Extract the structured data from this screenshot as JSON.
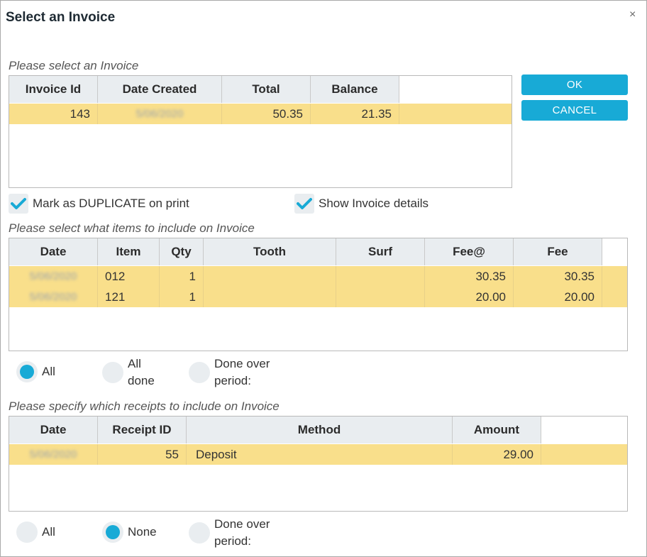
{
  "dialog": {
    "title": "Select an Invoice",
    "close": "×"
  },
  "invoice_section": {
    "label": "Please select an Invoice",
    "headers": [
      "Invoice Id",
      "Date Created",
      "Total",
      "Balance"
    ],
    "rows": [
      {
        "invoice_id": "143",
        "date_created": "5/06/2020",
        "total": "50.35",
        "balance": "21.35"
      }
    ]
  },
  "buttons": {
    "ok": "OK",
    "cancel": "CANCEL"
  },
  "checkboxes": {
    "duplicate": {
      "label": "Mark as DUPLICATE on print",
      "checked": true
    },
    "details": {
      "label": "Show Invoice details",
      "checked": true
    }
  },
  "items_section": {
    "label": "Please select what items to include on Invoice",
    "headers": [
      "Date",
      "Item",
      "Qty",
      "Tooth",
      "Surf",
      "Fee@",
      "Fee"
    ],
    "rows": [
      {
        "date": "5/06/2020",
        "item": "012",
        "qty": "1",
        "tooth": "",
        "surf": "",
        "fee_at": "30.35",
        "fee": "30.35"
      },
      {
        "date": "5/06/2020",
        "item": "121",
        "qty": "1",
        "tooth": "",
        "surf": "",
        "fee_at": "20.00",
        "fee": "20.00"
      }
    ],
    "radios": [
      "All",
      "All\ndone",
      "Done over\nperiod:"
    ],
    "selected": "All"
  },
  "receipts_section": {
    "label": "Please specify which receipts to include on Invoice",
    "headers": [
      "Date",
      "Receipt ID",
      "Method",
      "Amount"
    ],
    "rows": [
      {
        "date": "5/06/2020",
        "receipt_id": "55",
        "method": "Deposit",
        "amount": "29.00"
      }
    ],
    "radios": [
      "All",
      "None",
      "Done over\nperiod:"
    ],
    "selected": "None"
  },
  "colors": {
    "accent": "#18aad6",
    "selected_row": "#f9df8b",
    "header_bg": "#e9edf0"
  }
}
